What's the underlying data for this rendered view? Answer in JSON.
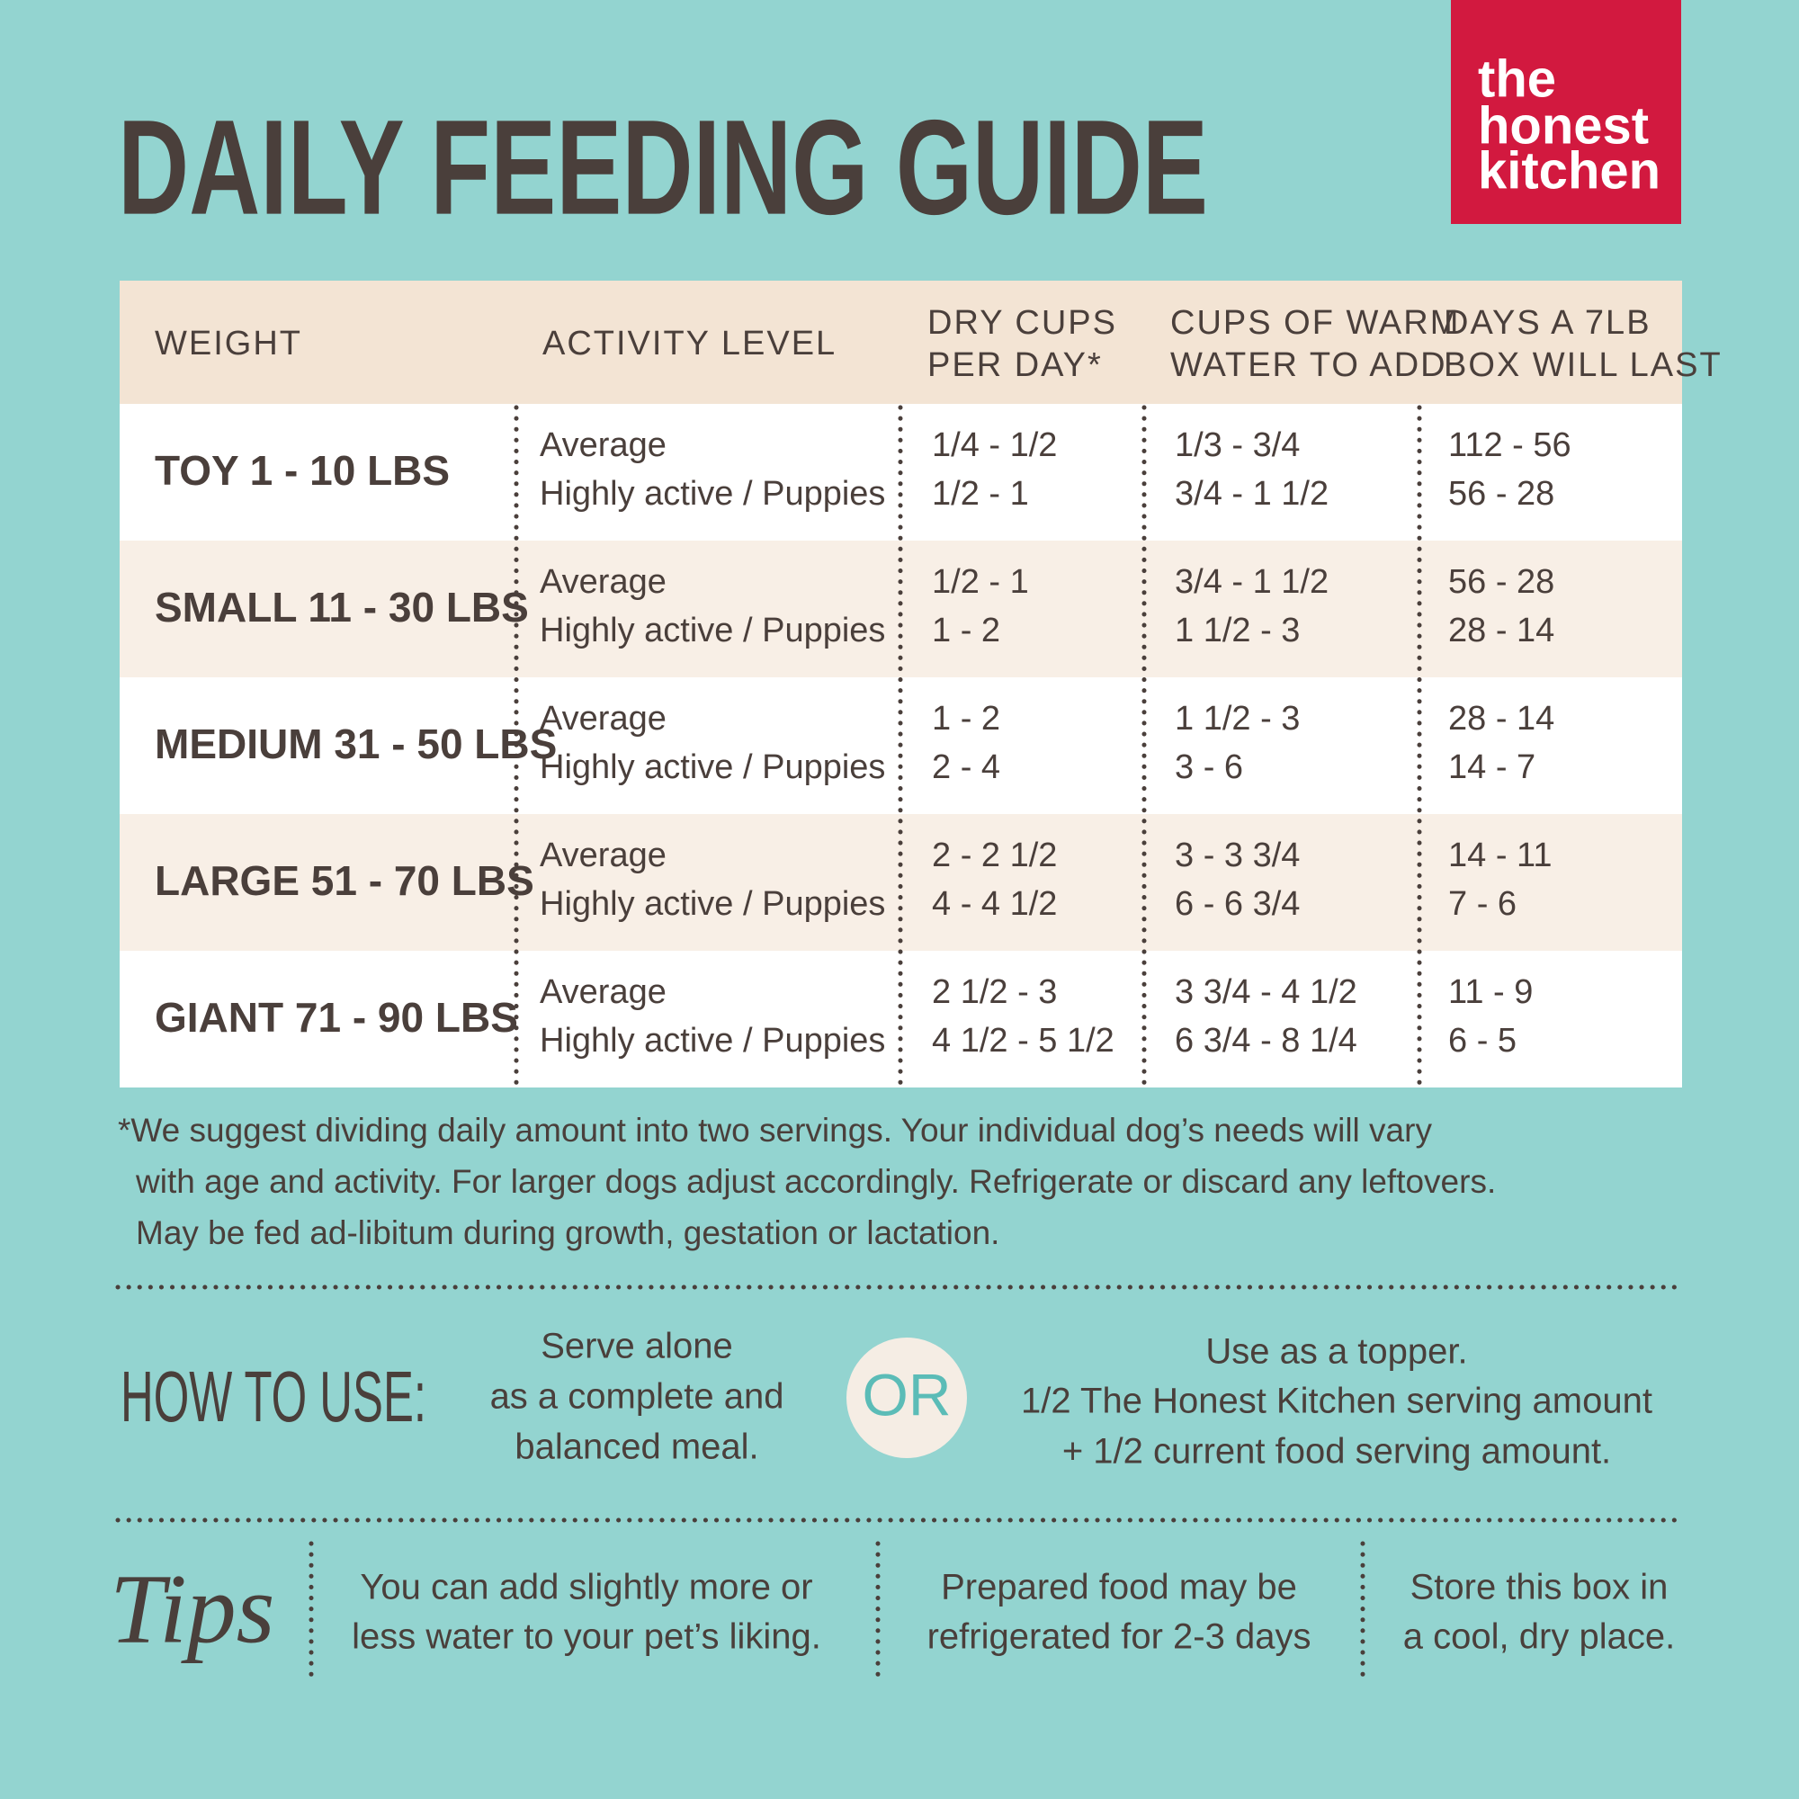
{
  "logo": {
    "lines": [
      "the",
      "honest",
      "kitchen"
    ]
  },
  "header": {
    "title": "DAILY FEEDING GUIDE"
  },
  "table": {
    "columns": [
      [
        "WEIGHT"
      ],
      [
        "ACTIVITY LEVEL"
      ],
      [
        "DRY CUPS",
        "PER DAY*"
      ],
      [
        "CUPS OF WARM",
        "WATER TO ADD"
      ],
      [
        "DAYS A 7LB",
        "BOX WILL LAST"
      ]
    ],
    "rows": [
      {
        "weight": "TOY 1 - 10 LBS",
        "activity": [
          "Average",
          "Highly active / Puppies"
        ],
        "dry": [
          "1/4 - 1/2",
          "1/2 - 1"
        ],
        "water": [
          "1/3 - 3/4",
          "3/4 - 1 1/2"
        ],
        "days": [
          "112 - 56",
          "56 - 28"
        ]
      },
      {
        "weight": "SMALL 11 - 30 LBS",
        "activity": [
          "Average",
          "Highly active / Puppies"
        ],
        "dry": [
          "1/2 - 1",
          "1 - 2"
        ],
        "water": [
          "3/4 - 1 1/2",
          "1 1/2 - 3"
        ],
        "days": [
          "56 - 28",
          "28 - 14"
        ]
      },
      {
        "weight": "MEDIUM 31 - 50 LBS",
        "activity": [
          "Average",
          "Highly active / Puppies"
        ],
        "dry": [
          "1 - 2",
          "2 - 4"
        ],
        "water": [
          "1 1/2 - 3",
          "3 - 6"
        ],
        "days": [
          "28 - 14",
          "14 - 7"
        ]
      },
      {
        "weight": "LARGE 51 - 70 LBS",
        "activity": [
          "Average",
          "Highly active / Puppies"
        ],
        "dry": [
          "2 - 2 1/2",
          "4 - 4 1/2"
        ],
        "water": [
          "3 - 3 3/4",
          "6 - 6 3/4"
        ],
        "days": [
          "14 - 11",
          "7 - 6"
        ]
      },
      {
        "weight": "GIANT 71 - 90 LBS",
        "activity": [
          "Average",
          "Highly active / Puppies"
        ],
        "dry": [
          "2 1/2 - 3",
          "4 1/2 - 5 1/2"
        ],
        "water": [
          "3 3/4 - 4 1/2",
          "6 3/4 - 8 1/4"
        ],
        "days": [
          "11 - 9",
          "6 - 5"
        ]
      }
    ]
  },
  "footnote": [
    "*We suggest dividing daily amount into two servings. Your individual dog’s needs will vary",
    "with age and activity. For larger dogs adjust accordingly. Refrigerate or discard any leftovers.",
    "May be fed ad-libitum during growth, gestation or lactation."
  ],
  "how_to_use": {
    "label": "HOW TO USE:",
    "option1": [
      "Serve alone",
      "as a complete and",
      "balanced meal."
    ],
    "separator": "OR",
    "option2": [
      "Use as a topper.",
      "1/2 The Honest Kitchen serving amount",
      "+ 1/2 current food serving amount."
    ]
  },
  "tips": {
    "label": "Tips",
    "items": [
      [
        "You can add slightly more or",
        "less water to your pet’s liking."
      ],
      [
        "Prepared food may be",
        "refrigerated for 2-3 days"
      ],
      [
        "Store this box in",
        "a cool, dry place."
      ]
    ]
  }
}
